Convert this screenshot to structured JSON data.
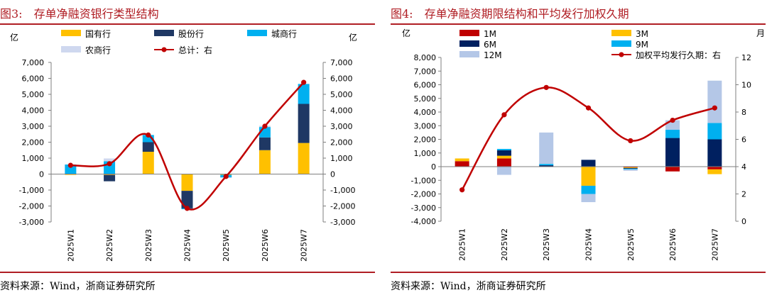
{
  "colors": {
    "brand_red": "#b01e24",
    "line_red": "#c00000"
  },
  "chart_data": [
    {
      "type": "bar",
      "title": "图3:　存单净融资银行类型结构",
      "source": "资料来源：Wind，浙商证券研究所",
      "stacked": true,
      "left_unit": "亿",
      "right_unit": "亿",
      "categories": [
        "2025W1",
        "2025W2",
        "2025W3",
        "2025W4",
        "2025W5",
        "2025W6",
        "2025W7"
      ],
      "ylim": [
        -3000,
        7000
      ],
      "y2lim": [
        -3000,
        7000
      ],
      "yticks": [
        -3000,
        -2000,
        -1000,
        0,
        1000,
        2000,
        3000,
        4000,
        5000,
        6000,
        7000
      ],
      "ytick_labels": [
        "-3,000",
        "-2,000",
        "-1,000",
        "0",
        "1,000",
        "2,000",
        "3,000",
        "4,000",
        "5,000",
        "6,000",
        "7,000"
      ],
      "series": [
        {
          "name": "国有行",
          "color": "#ffc000",
          "values": [
            -50,
            -50,
            1400,
            -1050,
            -50,
            1500,
            1950
          ]
        },
        {
          "name": "股份行",
          "color": "#1f3864",
          "values": [
            0,
            -400,
            600,
            -1100,
            0,
            800,
            2450
          ]
        },
        {
          "name": "城商行",
          "color": "#00b0f0",
          "values": [
            600,
            800,
            450,
            -50,
            -150,
            650,
            1250
          ]
        },
        {
          "name": "农商行",
          "color": "#cfd8ef",
          "values": [
            0,
            180,
            0,
            0,
            -50,
            80,
            0
          ]
        }
      ],
      "line": {
        "name": "总计：右",
        "axis": "right",
        "color": "#c00000",
        "values": [
          550,
          650,
          2450,
          -2150,
          -150,
          3000,
          5750
        ]
      },
      "legend": [
        {
          "label": "国有行",
          "kind": "box",
          "color": "#ffc000"
        },
        {
          "label": "股份行",
          "kind": "box",
          "color": "#1f3864"
        },
        {
          "label": "城商行",
          "kind": "box",
          "color": "#00b0f0"
        },
        {
          "label": "农商行",
          "kind": "box",
          "color": "#cfd8ef"
        },
        {
          "label": "总计：右",
          "kind": "line",
          "color": "#c00000"
        }
      ]
    },
    {
      "type": "bar",
      "title": "图4:　存单净融资期限结构和平均发行加权久期",
      "source": "资料来源：Wind，浙商证券研究所",
      "stacked": true,
      "left_unit": "亿",
      "right_unit": "月",
      "categories": [
        "2025W1",
        "2025W2",
        "2025W3",
        "2025W4",
        "2025W5",
        "2025W6",
        "2025W7"
      ],
      "ylim": [
        -4000,
        8000
      ],
      "y2lim": [
        0,
        12
      ],
      "yticks": [
        -4000,
        -3000,
        -2000,
        -1000,
        0,
        1000,
        2000,
        3000,
        4000,
        5000,
        6000,
        7000,
        8000
      ],
      "ytick_labels": [
        "-4,000",
        "-3,000",
        "-2,000",
        "-1,000",
        "0",
        "1,000",
        "2,000",
        "3,000",
        "4,000",
        "5,000",
        "6,000",
        "7,000",
        "8,000"
      ],
      "y2ticks": [
        0,
        2,
        4,
        6,
        8,
        10,
        12
      ],
      "y2tick_labels": [
        "0",
        "2",
        "4",
        "6",
        "8",
        "10",
        "12"
      ],
      "series": [
        {
          "name": "1M",
          "color": "#c00000",
          "values": [
            400,
            600,
            0,
            0,
            -50,
            -350,
            -200
          ]
        },
        {
          "name": "3M",
          "color": "#ffc000",
          "values": [
            200,
            200,
            0,
            -1400,
            -50,
            0,
            -350
          ]
        },
        {
          "name": "6M",
          "color": "#002060",
          "values": [
            0,
            400,
            100,
            500,
            -50,
            2100,
            2000
          ]
        },
        {
          "name": "9M",
          "color": "#00b0f0",
          "values": [
            0,
            100,
            100,
            -600,
            -50,
            600,
            1200
          ]
        },
        {
          "name": "12M",
          "color": "#b4c7e7",
          "values": [
            0,
            -600,
            2300,
            -600,
            -100,
            700,
            3100
          ]
        }
      ],
      "line": {
        "name": "加权平均发行久期：右",
        "axis": "right",
        "color": "#c00000",
        "values": [
          2.3,
          7.8,
          9.8,
          8.3,
          5.9,
          7.4,
          8.3
        ]
      },
      "legend": [
        {
          "label": "1M",
          "kind": "box",
          "color": "#c00000"
        },
        {
          "label": "3M",
          "kind": "box",
          "color": "#ffc000"
        },
        {
          "label": "6M",
          "kind": "box",
          "color": "#002060"
        },
        {
          "label": "9M",
          "kind": "box",
          "color": "#00b0f0"
        },
        {
          "label": "12M",
          "kind": "box",
          "color": "#b4c7e7"
        },
        {
          "label": "加权平均发行久期：右",
          "kind": "line",
          "color": "#c00000"
        }
      ]
    }
  ]
}
